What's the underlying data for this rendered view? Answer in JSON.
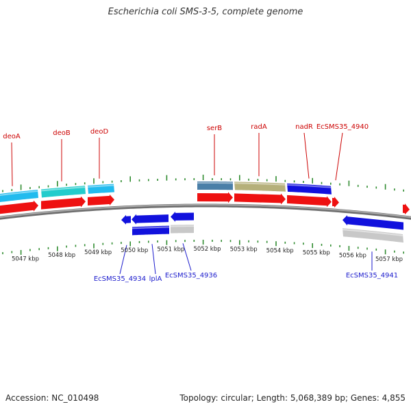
{
  "title": "Escherichia coli SMS-3-5, complete genome",
  "footer": {
    "accession": "Accession: NC_010498",
    "summary": "Topology: circular; Length: 5,068,389 bp; Genes: 4,855"
  },
  "colors": {
    "backbone": "#8a8a8a",
    "tick": "#2e8b2e",
    "top_label": "#cc0000",
    "bottom_label": "#1a1acc",
    "red": "#ee1111",
    "blue": "#1111dd",
    "cyan": "#22bbee",
    "teal": "#22cccc",
    "steel": "#4a7fa8",
    "khaki": "#b5b07a",
    "gray": "#c8c8c8"
  },
  "map": {
    "scale_labels": [
      "5047 kbp",
      "5048 kbp",
      "5049 kbp",
      "5050 kbp",
      "5051 kbp",
      "5052 kbp",
      "5053 kbp",
      "5054 kbp",
      "5055 kbp",
      "5056 kbp",
      "5057 kbp"
    ],
    "top_labels": [
      {
        "text": "deoA",
        "color": "top_label"
      },
      {
        "text": "deoB",
        "color": "top_label"
      },
      {
        "text": "deoD",
        "color": "top_label"
      },
      {
        "text": "serB",
        "color": "top_label"
      },
      {
        "text": "radA",
        "color": "top_label"
      },
      {
        "text": "nadR",
        "color": "top_label"
      },
      {
        "text": "EcSMS35_4940",
        "color": "top_label"
      }
    ],
    "bottom_labels": [
      {
        "text": "EcSMS35_4934",
        "color": "bottom_label"
      },
      {
        "text": "lplA",
        "color": "bottom_label"
      },
      {
        "text": "EcSMS35_4936",
        "color": "bottom_label"
      },
      {
        "text": "EcSMS35_4941",
        "color": "bottom_label"
      }
    ]
  }
}
